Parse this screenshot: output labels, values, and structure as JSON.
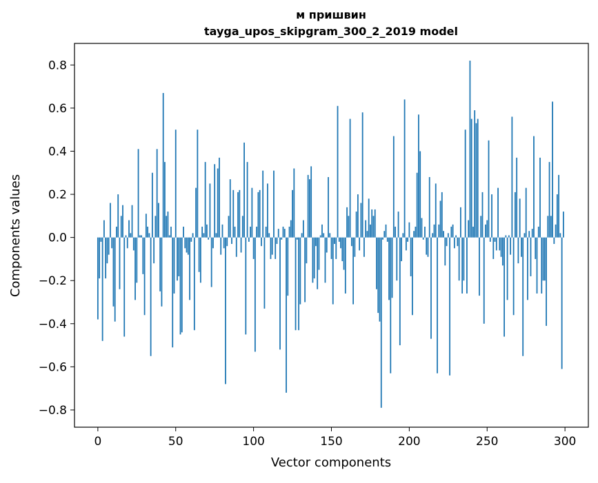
{
  "chart_data": {
    "type": "bar",
    "title": "м пришвин",
    "subtitle": "tayga_upos_skipgram_300_2_2019 model",
    "xlabel": "Vector components",
    "ylabel": "Components values",
    "xlim": [
      -15,
      315
    ],
    "ylim": [
      -0.88,
      0.9
    ],
    "xticks": [
      0,
      50,
      100,
      150,
      200,
      250,
      300
    ],
    "xtick_labels": [
      "0",
      "50",
      "100",
      "150",
      "200",
      "250",
      "300"
    ],
    "yticks": [
      -0.8,
      -0.6,
      -0.4,
      -0.2,
      0.0,
      0.2,
      0.4,
      0.6,
      0.8
    ],
    "ytick_labels": [
      "−0.8",
      "−0.6",
      "−0.4",
      "−0.2",
      "0.0",
      "0.2",
      "0.4",
      "0.6",
      "0.8"
    ],
    "grid": false,
    "legend": "none",
    "bar_color": "#1f77b4",
    "x_start": 0,
    "values": [
      -0.38,
      -0.19,
      -0.02,
      -0.48,
      0.08,
      -0.19,
      -0.12,
      -0.08,
      0.16,
      -0.05,
      -0.32,
      -0.39,
      0.05,
      0.2,
      -0.24,
      0.1,
      0.15,
      -0.46,
      0.01,
      -0.05,
      0.08,
      0.02,
      0.15,
      -0.06,
      -0.29,
      -0.21,
      0.41,
      0.01,
      0.01,
      -0.17,
      -0.36,
      0.11,
      0.05,
      0.02,
      -0.55,
      0.3,
      -0.12,
      0.1,
      0.41,
      0.16,
      -0.25,
      -0.32,
      0.67,
      0.35,
      0.1,
      0.12,
      0.01,
      0.05,
      -0.51,
      -0.26,
      0.5,
      -0.2,
      -0.18,
      -0.45,
      -0.44,
      0.05,
      -0.05,
      -0.07,
      -0.08,
      -0.29,
      -0.02,
      0.02,
      -0.43,
      0.23,
      0.5,
      -0.16,
      -0.21,
      0.05,
      0.02,
      0.35,
      0.06,
      -0.01,
      0.25,
      -0.23,
      -0.05,
      0.34,
      0.02,
      0.32,
      0.37,
      -0.08,
      0.06,
      -0.05,
      -0.68,
      -0.04,
      0.1,
      0.27,
      -0.03,
      0.22,
      0.05,
      -0.09,
      0.21,
      0.22,
      -0.07,
      0.1,
      0.44,
      -0.45,
      0.35,
      -0.02,
      0.05,
      0.23,
      -0.1,
      -0.53,
      0.05,
      0.21,
      0.22,
      -0.04,
      0.31,
      -0.33,
      0.05,
      0.25,
      0.02,
      -0.1,
      -0.08,
      0.31,
      -0.1,
      -0.03,
      0.04,
      -0.52,
      -0.01,
      0.05,
      0.04,
      -0.72,
      -0.27,
      0.05,
      0.08,
      0.22,
      0.32,
      -0.43,
      -0.01,
      -0.43,
      -0.31,
      0.02,
      0.08,
      -0.3,
      -0.12,
      0.29,
      0.27,
      0.33,
      -0.21,
      -0.19,
      -0.04,
      -0.24,
      -0.15,
      0.01,
      0.06,
      0.02,
      -0.21,
      -0.07,
      0.28,
      0.02,
      -0.1,
      -0.31,
      -0.03,
      -0.1,
      0.61,
      -0.02,
      -0.05,
      -0.11,
      -0.15,
      -0.26,
      0.14,
      0.1,
      0.55,
      -0.04,
      -0.31,
      -0.09,
      0.12,
      0.2,
      -0.06,
      0.16,
      0.58,
      -0.09,
      0.08,
      0.03,
      0.18,
      0.06,
      0.13,
      0.1,
      0.13,
      -0.24,
      -0.35,
      -0.39,
      -0.79,
      -0.01,
      0.03,
      0.06,
      -0.02,
      -0.29,
      -0.63,
      -0.28,
      0.47,
      0.05,
      -0.2,
      0.12,
      -0.5,
      -0.11,
      0.02,
      0.64,
      -0.06,
      -0.02,
      0.07,
      -0.18,
      -0.36,
      0.03,
      0.05,
      0.3,
      0.57,
      0.4,
      0.09,
      -0.01,
      0.05,
      -0.08,
      -0.09,
      0.28,
      -0.47,
      0.02,
      0.06,
      0.25,
      -0.63,
      0.06,
      0.17,
      0.21,
      0.03,
      -0.13,
      -0.04,
      0.02,
      -0.64,
      0.05,
      0.06,
      -0.05,
      0.01,
      -0.04,
      -0.2,
      0.14,
      -0.26,
      -0.2,
      0.5,
      -0.26,
      0.08,
      0.82,
      0.55,
      0.05,
      0.59,
      0.53,
      0.55,
      -0.27,
      0.1,
      0.21,
      -0.4,
      0.06,
      0.08,
      0.45,
      -0.02,
      0.2,
      -0.1,
      -0.02,
      -0.06,
      0.23,
      -0.06,
      -0.09,
      -0.13,
      -0.46,
      0.01,
      -0.29,
      0.01,
      -0.08,
      0.56,
      -0.36,
      0.21,
      0.37,
      -0.12,
      0.18,
      -0.09,
      -0.55,
      0.02,
      0.23,
      -0.29,
      0.03,
      -0.18,
      0.04,
      0.47,
      -0.1,
      -0.26,
      0.05,
      0.37,
      -0.26,
      -0.2,
      -0.2,
      -0.41,
      0.1,
      0.35,
      0.1,
      0.63,
      -0.03,
      0.06,
      0.2,
      0.29,
      0.02,
      -0.61,
      0.12
    ]
  }
}
